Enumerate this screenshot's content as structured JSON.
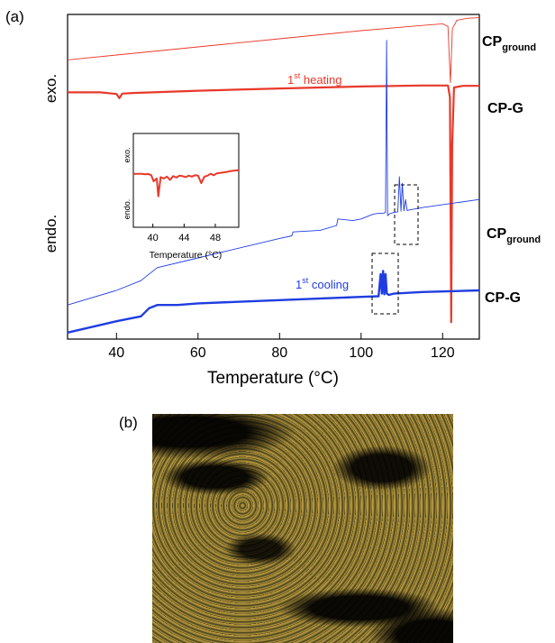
{
  "panel_labels": {
    "a": "(a)",
    "b": "(b)"
  },
  "colors": {
    "heating": "#e8392a",
    "cooling": "#1f3de0",
    "inset": "#e8392a",
    "frame": "#000000"
  },
  "y_labels": {
    "top": "exo.",
    "bottom": "endo."
  },
  "annotations": {
    "heating_prefix": "1",
    "heating_sup": "st",
    "heating_suffix": " heating",
    "cooling_prefix": "1",
    "cooling_sup": "st",
    "cooling_suffix": " cooling"
  },
  "curve_labels": {
    "cp_ground_main": "CP",
    "cp_ground_sub": "ground",
    "cp_g": "CP-G"
  },
  "chart_data": [
    {
      "type": "line",
      "title": "",
      "xlabel": "Temperature (°C)",
      "ylabel": "",
      "xlim": [
        28,
        129
      ],
      "ylim": [
        0,
        100
      ],
      "x_ticks": [
        40,
        60,
        80,
        100,
        120
      ],
      "grid": false,
      "series": [
        {
          "name": "CP_ground",
          "color": "#e8392a",
          "width": 0.9,
          "x": [
            28,
            40,
            60,
            80,
            100,
            115,
            120,
            121.3,
            121.9,
            122.4,
            123.5,
            126,
            129
          ],
          "y": [
            86.0,
            87.5,
            90.0,
            92.5,
            95.0,
            96.6,
            97.1,
            96.3,
            79.0,
            95.6,
            98.2,
            98.8,
            99.0
          ]
        },
        {
          "name": "CP-G",
          "color": "#e8392a",
          "width": 2.2,
          "x": [
            28,
            36,
            40,
            40.7,
            41.4,
            44,
            60,
            80,
            100,
            115,
            121.3,
            121.8,
            122.1,
            122.35,
            122.8,
            125,
            129
          ],
          "y": [
            76.0,
            76.0,
            75.5,
            74.2,
            75.6,
            75.8,
            76.5,
            77.2,
            77.8,
            78.1,
            78.1,
            74.5,
            5.2,
            60.0,
            77.5,
            78.0,
            78.0
          ]
        },
        {
          "name": "CP_ground",
          "color": "#1f3de0",
          "width": 0.9,
          "x": [
            28,
            40,
            46,
            50,
            60,
            80,
            83,
            83.3,
            90,
            94,
            94.3,
            98,
            100,
            102,
            103,
            104,
            105.5,
            106,
            106.25,
            106.5,
            107,
            108,
            109,
            109.4,
            109.8,
            110.1,
            110.5,
            110.9,
            111.3,
            112,
            115,
            129
          ],
          "y": [
            10.5,
            15.0,
            18.0,
            22.0,
            25.0,
            31.0,
            31.8,
            33.0,
            33.5,
            35.0,
            37.0,
            36.5,
            37.0,
            38.0,
            38.5,
            38.7,
            38.8,
            39.0,
            92.0,
            38.0,
            38.6,
            39.0,
            39.2,
            50.0,
            39.4,
            48.0,
            39.5,
            43.0,
            39.6,
            39.8,
            40.5,
            43.0
          ]
        },
        {
          "name": "CP-G",
          "color": "#1f3de0",
          "width": 2.4,
          "x": [
            28,
            40,
            46,
            48,
            50,
            55,
            60,
            80,
            100,
            104.3,
            104.8,
            105.1,
            105.4,
            105.7,
            106.0,
            106.3,
            106.8,
            108,
            115,
            129
          ],
          "y": [
            2.0,
            5.5,
            7.0,
            9.5,
            10.5,
            10.5,
            11.0,
            12.0,
            13.0,
            13.2,
            20.0,
            14.0,
            21.0,
            13.8,
            20.0,
            14.0,
            13.6,
            14.0,
            14.5,
            15.0
          ]
        }
      ]
    },
    {
      "type": "line",
      "title": "",
      "xlabel": "Temperature (°C)",
      "ylabel": "",
      "ylabels_top": "exo.",
      "ylabels_bottom": "endo.",
      "xlim": [
        37.5,
        51
      ],
      "ylim": [
        0,
        100
      ],
      "x_ticks": [
        40,
        44,
        48
      ],
      "grid": false,
      "series": [
        {
          "name": "",
          "color": "#e8392a",
          "width": 2.0,
          "x": [
            37.5,
            38.6,
            39.0,
            39.4,
            39.8,
            40.1,
            40.5,
            40.7,
            41.0,
            41.4,
            41.8,
            42.2,
            42.6,
            43.0,
            43.4,
            43.8,
            44.2,
            44.6,
            45.0,
            45.4,
            45.8,
            46.2,
            46.6,
            47.0,
            47.4,
            47.8,
            48.2,
            48.6,
            49.0,
            49.5,
            50.0,
            51.0
          ],
          "y": [
            57.0,
            57.0,
            56.5,
            56.8,
            55.5,
            49.0,
            52.0,
            33.0,
            53.5,
            52.0,
            54.0,
            50.5,
            54.5,
            53.0,
            55.0,
            54.5,
            53.5,
            55.0,
            54.0,
            55.5,
            55.0,
            47.0,
            54.0,
            55.0,
            57.0,
            55.5,
            57.5,
            58.0,
            58.5,
            59.0,
            60.0,
            61.0
          ]
        }
      ]
    }
  ]
}
